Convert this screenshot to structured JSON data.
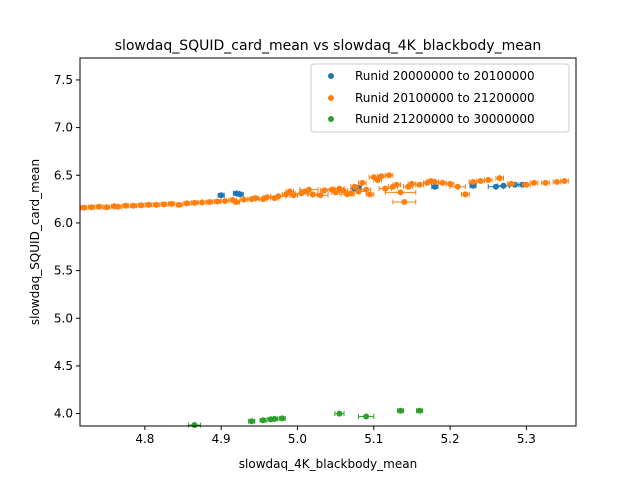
{
  "chart_data": {
    "type": "scatter",
    "title": "slowdaq_SQUID_card_mean vs slowdaq_4K_blackbody_mean",
    "xlabel": "slowdaq_4K_blackbody_mean",
    "ylabel": "slowdaq_SQUID_card_mean",
    "xlim": [
      4.715,
      5.365
    ],
    "ylim": [
      3.87,
      7.73
    ],
    "xticks": [
      4.8,
      4.9,
      5.0,
      5.1,
      5.2,
      5.3
    ],
    "xtick_labels": [
      "4.8",
      "4.9",
      "5.0",
      "5.1",
      "5.2",
      "5.3"
    ],
    "yticks": [
      4.0,
      4.5,
      5.0,
      5.5,
      6.0,
      6.5,
      7.0,
      7.5
    ],
    "ytick_labels": [
      "4.0",
      "4.5",
      "5.0",
      "5.5",
      "6.0",
      "6.5",
      "7.0",
      "7.5"
    ],
    "grid": false,
    "legend_position": "top-right",
    "series": [
      {
        "name": "Runid 20000000 to 20100000",
        "color": "#1f77b4",
        "points": [
          [
            4.9,
            6.29,
            0.004
          ],
          [
            4.92,
            6.31,
            0.004
          ],
          [
            4.925,
            6.3,
            0.004
          ],
          [
            5.075,
            6.36,
            0.005
          ],
          [
            5.08,
            6.37,
            0.004
          ],
          [
            5.18,
            6.38,
            0.004
          ],
          [
            5.23,
            6.39,
            0.004
          ],
          [
            5.26,
            6.38,
            0.01
          ],
          [
            5.27,
            6.39,
            0.008
          ],
          [
            5.285,
            6.4,
            0.008
          ],
          [
            5.295,
            6.4,
            0.005
          ]
        ]
      },
      {
        "name": "Runid 20100000 to 21200000",
        "color": "#ff7f0e",
        "points": [
          [
            4.72,
            6.16,
            0.004
          ],
          [
            4.73,
            6.165,
            0.004
          ],
          [
            4.74,
            6.17,
            0.004
          ],
          [
            4.75,
            6.165,
            0.004
          ],
          [
            4.76,
            6.175,
            0.004
          ],
          [
            4.765,
            6.17,
            0.004
          ],
          [
            4.775,
            6.18,
            0.004
          ],
          [
            4.785,
            6.18,
            0.004
          ],
          [
            4.795,
            6.185,
            0.004
          ],
          [
            4.805,
            6.19,
            0.004
          ],
          [
            4.815,
            6.19,
            0.004
          ],
          [
            4.825,
            6.195,
            0.004
          ],
          [
            4.835,
            6.2,
            0.004
          ],
          [
            4.845,
            6.19,
            0.004
          ],
          [
            4.855,
            6.205,
            0.004
          ],
          [
            4.865,
            6.21,
            0.004
          ],
          [
            4.875,
            6.215,
            0.005
          ],
          [
            4.885,
            6.22,
            0.004
          ],
          [
            4.895,
            6.225,
            0.004
          ],
          [
            4.905,
            6.23,
            0.005
          ],
          [
            4.915,
            6.24,
            0.005
          ],
          [
            4.92,
            6.22,
            0.004
          ],
          [
            4.93,
            6.245,
            0.005
          ],
          [
            4.94,
            6.25,
            0.005
          ],
          [
            4.945,
            6.26,
            0.004
          ],
          [
            4.955,
            6.25,
            0.005
          ],
          [
            4.96,
            6.27,
            0.005
          ],
          [
            4.97,
            6.26,
            0.005
          ],
          [
            4.975,
            6.28,
            0.01
          ],
          [
            4.985,
            6.3,
            0.005
          ],
          [
            4.99,
            6.33,
            0.005
          ],
          [
            4.995,
            6.29,
            0.005
          ],
          [
            5.005,
            6.31,
            0.008
          ],
          [
            5.01,
            6.33,
            0.005
          ],
          [
            5.015,
            6.35,
            0.012
          ],
          [
            5.02,
            6.3,
            0.006
          ],
          [
            5.03,
            6.29,
            0.01
          ],
          [
            5.035,
            6.34,
            0.005
          ],
          [
            5.045,
            6.35,
            0.008
          ],
          [
            5.05,
            6.32,
            0.005
          ],
          [
            5.055,
            6.36,
            0.006
          ],
          [
            5.06,
            6.34,
            0.006
          ],
          [
            5.065,
            6.3,
            0.008
          ],
          [
            5.07,
            6.31,
            0.005
          ],
          [
            5.075,
            6.38,
            0.005
          ],
          [
            5.08,
            6.33,
            0.01
          ],
          [
            5.085,
            6.42,
            0.005
          ],
          [
            5.09,
            6.35,
            0.006
          ],
          [
            5.095,
            6.3,
            0.005
          ],
          [
            5.1,
            6.48,
            0.006
          ],
          [
            5.105,
            6.45,
            0.005
          ],
          [
            5.11,
            6.49,
            0.005
          ],
          [
            5.115,
            6.36,
            0.008
          ],
          [
            5.12,
            6.5,
            0.005
          ],
          [
            5.125,
            6.38,
            0.006
          ],
          [
            5.13,
            6.4,
            0.005
          ],
          [
            5.135,
            6.32,
            0.02
          ],
          [
            5.14,
            6.22,
            0.015
          ],
          [
            5.145,
            6.38,
            0.006
          ],
          [
            5.15,
            6.41,
            0.005
          ],
          [
            5.16,
            6.4,
            0.005
          ],
          [
            5.17,
            6.42,
            0.005
          ],
          [
            5.175,
            6.44,
            0.005
          ],
          [
            5.18,
            6.43,
            0.005
          ],
          [
            5.19,
            6.42,
            0.005
          ],
          [
            5.2,
            6.41,
            0.005
          ],
          [
            5.21,
            6.38,
            0.01
          ],
          [
            5.22,
            6.3,
            0.005
          ],
          [
            5.23,
            6.43,
            0.005
          ],
          [
            5.24,
            6.44,
            0.005
          ],
          [
            5.25,
            6.45,
            0.005
          ],
          [
            5.265,
            6.47,
            0.005
          ],
          [
            5.28,
            6.41,
            0.005
          ],
          [
            5.3,
            6.4,
            0.005
          ],
          [
            5.31,
            6.42,
            0.005
          ],
          [
            5.325,
            6.42,
            0.005
          ],
          [
            5.34,
            6.43,
            0.005
          ],
          [
            5.35,
            6.44,
            0.005
          ]
        ]
      },
      {
        "name": "Runid 21200000 to 30000000",
        "color": "#2ca02c",
        "points": [
          [
            4.865,
            3.88,
            0.008
          ],
          [
            4.94,
            3.92,
            0.004
          ],
          [
            4.955,
            3.93,
            0.004
          ],
          [
            4.965,
            3.94,
            0.004
          ],
          [
            4.97,
            3.945,
            0.004
          ],
          [
            4.98,
            3.95,
            0.004
          ],
          [
            5.055,
            4.0,
            0.006
          ],
          [
            5.09,
            3.97,
            0.01
          ],
          [
            5.135,
            4.03,
            0.004
          ],
          [
            5.16,
            4.03,
            0.004
          ]
        ]
      }
    ]
  }
}
